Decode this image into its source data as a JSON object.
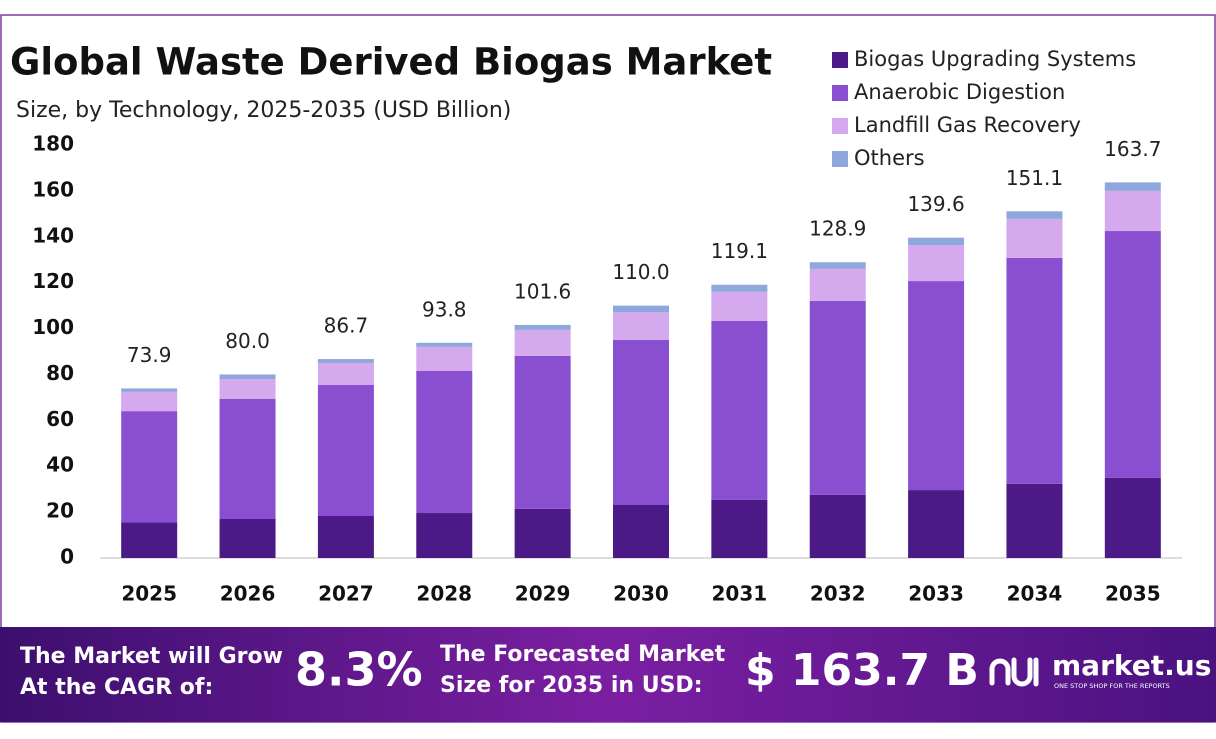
{
  "chart_data": {
    "type": "stacked-bar",
    "title": "Global Waste Derived Biogas Market",
    "subtitle": "Size, by Technology, 2025-2035 (USD Billion)",
    "categories": [
      "2025",
      "2026",
      "2027",
      "2028",
      "2029",
      "2030",
      "2031",
      "2032",
      "2033",
      "2034",
      "2035"
    ],
    "series": [
      {
        "name": "Biogas Upgrading Systems",
        "color": "#4b1a86",
        "values": [
          15.5,
          17.0,
          18.3,
          19.6,
          21.4,
          23.1,
          25.3,
          27.5,
          29.6,
          32.3,
          34.9
        ]
      },
      {
        "name": "Anaerobic Digestion",
        "color": "#8a4fd0",
        "values": [
          48.5,
          52.3,
          57.1,
          61.9,
          66.7,
          71.9,
          78.0,
          84.5,
          91.1,
          98.5,
          107.6
        ]
      },
      {
        "name": "Landfill Gas Recovery",
        "color": "#d4a9ee",
        "values": [
          8.4,
          8.7,
          9.6,
          10.5,
          11.3,
          12.2,
          12.7,
          14.0,
          15.7,
          17.0,
          17.5
        ]
      },
      {
        "name": "Others",
        "color": "#8fa8dc",
        "values": [
          1.5,
          2.0,
          1.7,
          1.8,
          2.2,
          2.8,
          3.1,
          2.9,
          3.2,
          3.3,
          3.7
        ]
      }
    ],
    "totals": [
      73.9,
      80.0,
      86.7,
      93.8,
      101.6,
      110.0,
      119.1,
      128.9,
      139.6,
      151.1,
      163.7
    ],
    "value_labels": [
      "73.9",
      "80.0",
      "86.7",
      "93.8",
      "101.6",
      "110.0",
      "119.1",
      "128.9",
      "139.6",
      "151.1",
      "163.7"
    ],
    "ylim": [
      0,
      180
    ],
    "yticks": [
      0,
      20,
      40,
      60,
      80,
      100,
      120,
      140,
      160,
      180
    ],
    "grid": false,
    "legend": "top-right"
  },
  "footer": {
    "cagr_text": [
      "The Market will Grow",
      "At the CAGR of:"
    ],
    "cagr": "8.3%",
    "size_text": [
      "The Forecasted Market",
      "Size for 2035 in USD:"
    ],
    "size": "$ 163.7 B",
    "brand": "market.us",
    "tagline": "ONE STOP SHOP FOR THE REPORTS"
  }
}
